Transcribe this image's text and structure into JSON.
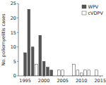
{
  "chart_data": {
    "type": "bar",
    "ylabel": "No. poliomyelitis cases",
    "x": [
      1995,
      1996,
      1997,
      1998,
      1999,
      2000,
      2001,
      2002,
      2003,
      2004,
      2005,
      2006,
      2007,
      2008,
      2009,
      2010,
      2011,
      2012,
      2013,
      2014
    ],
    "series": [
      {
        "name": "WPV",
        "color": "#555555",
        "values": [
          8,
          23,
          10,
          0,
          14,
          5,
          3,
          2,
          0,
          0,
          0,
          0,
          0,
          0,
          0,
          0,
          0,
          0,
          0,
          0
        ]
      },
      {
        "name": "cVDPV",
        "color": "#ffffff",
        "values": [
          0,
          0,
          0,
          4,
          0,
          0,
          0,
          0,
          0,
          2,
          2,
          0,
          0,
          4,
          2,
          1,
          2,
          2,
          0,
          2
        ]
      }
    ],
    "xlim": [
      1993.2,
      2015.8
    ],
    "xticks": [
      1995,
      2000,
      2005,
      2010,
      2015
    ],
    "ylim": [
      0,
      25
    ],
    "yticks": [
      0,
      5,
      10,
      15,
      20,
      25
    ],
    "legend": "upper right",
    "grid": false
  }
}
